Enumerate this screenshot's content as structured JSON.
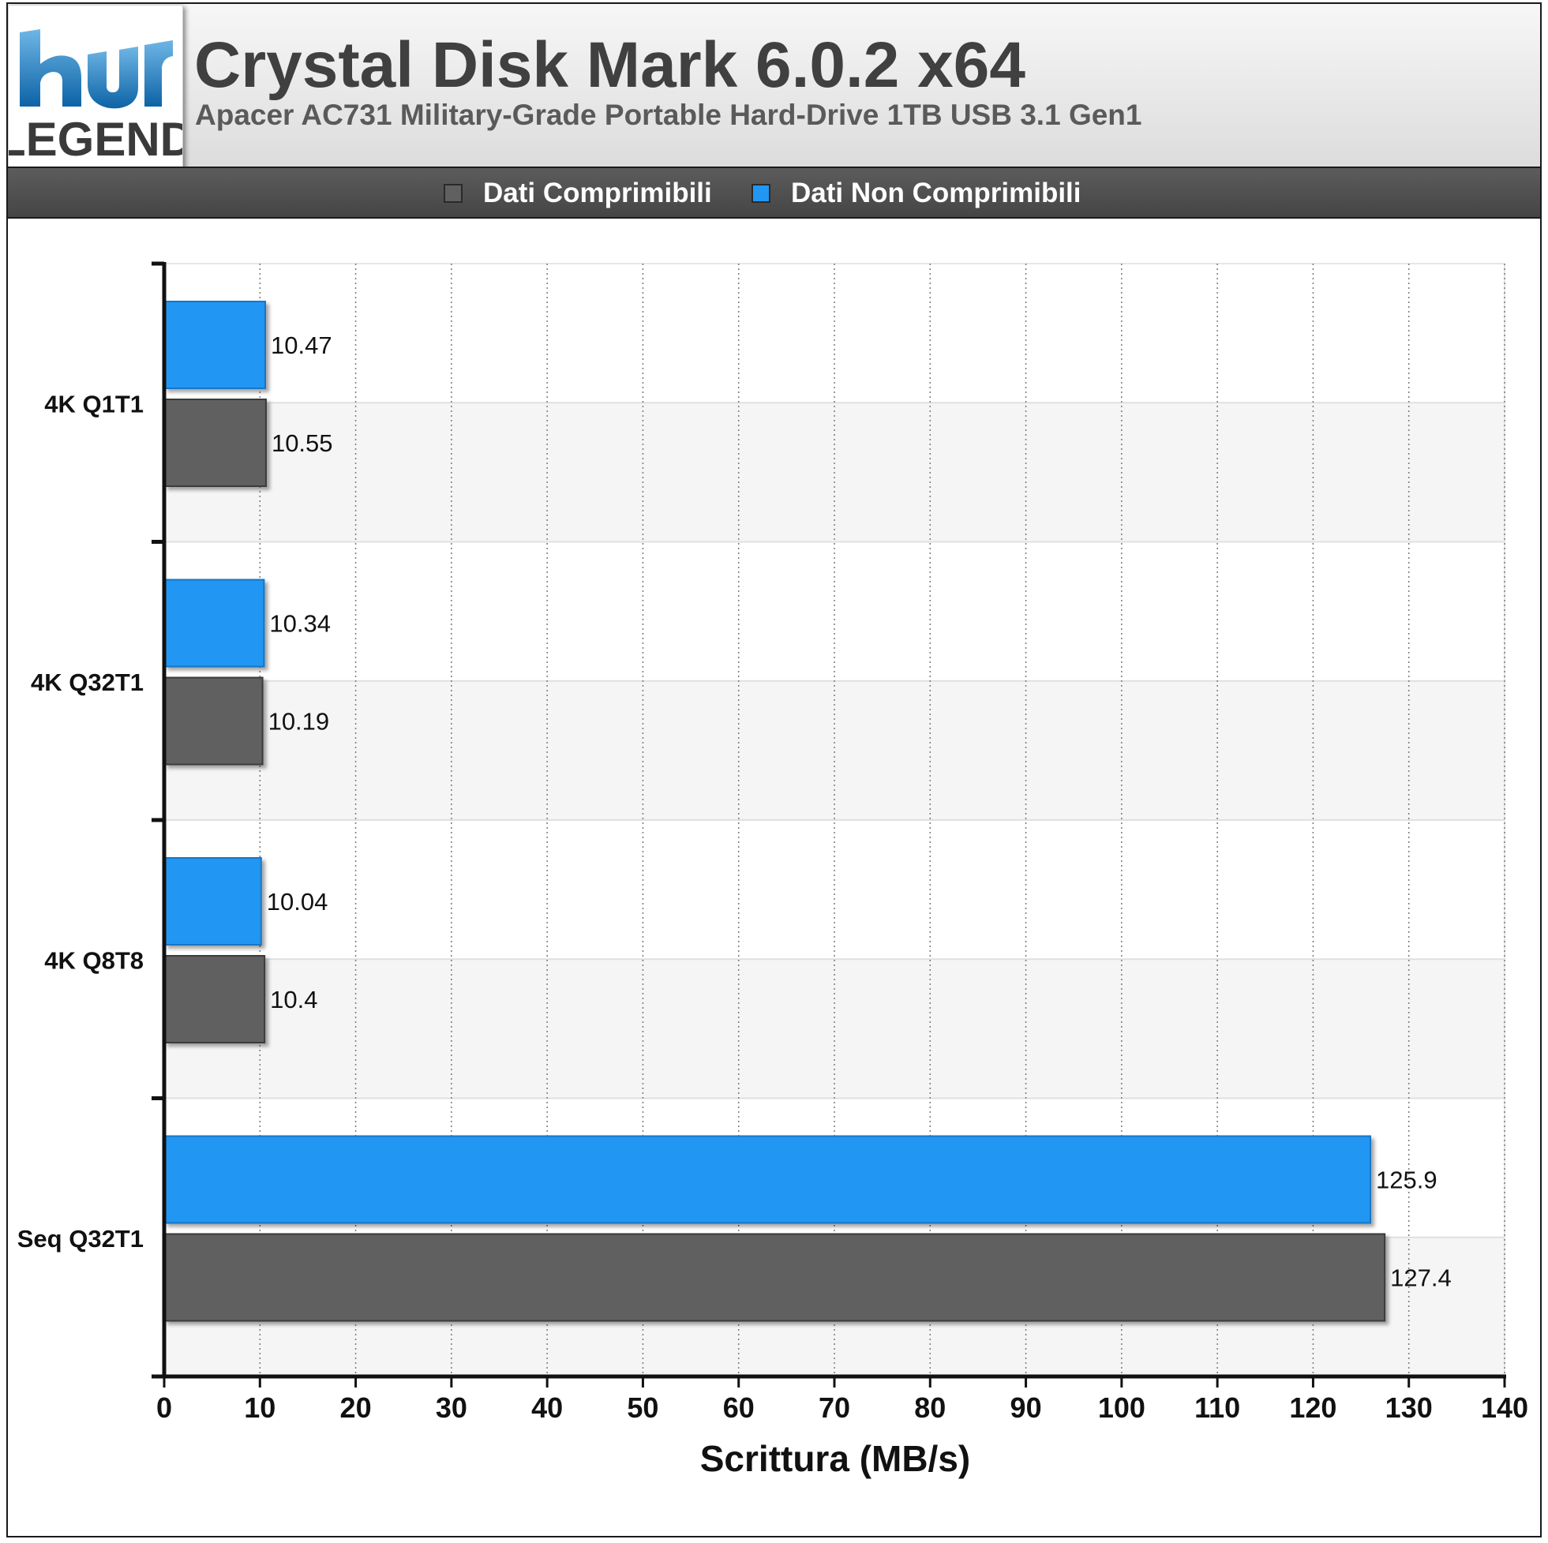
{
  "header": {
    "title": "Crystal Disk Mark 6.0.2 x64",
    "subtitle": "Apacer AC731 Military-Grade Portable Hard-Drive 1TB USB 3.1 Gen1",
    "logo_text": "LEGEND"
  },
  "legend": [
    {
      "label": "Dati Comprimibili",
      "color": "#606060"
    },
    {
      "label": "Dati Non Comprimibili",
      "color": "#2196f3"
    }
  ],
  "chart_data": {
    "type": "bar",
    "orientation": "horizontal",
    "categories": [
      "4K Q1T1",
      "4K Q32T1",
      "4K Q8T8",
      "Seq Q32T1"
    ],
    "series": [
      {
        "name": "Dati Non Comprimibili",
        "color": "#2196f3",
        "values": [
          10.47,
          10.34,
          10.04,
          125.9
        ]
      },
      {
        "name": "Dati Comprimibili",
        "color": "#606060",
        "values": [
          10.55,
          10.19,
          10.4,
          127.4
        ]
      }
    ],
    "value_labels": {
      "Dati Non Comprimibili": [
        "10.47",
        "10.34",
        "10.04",
        "125.9"
      ],
      "Dati Comprimibili": [
        "10.55",
        "10.19",
        "10.4",
        "127.4"
      ]
    },
    "xlabel": "Scrittura (MB/s)",
    "xlim": [
      0,
      140
    ],
    "xticks": [
      "0",
      "10",
      "20",
      "30",
      "40",
      "50",
      "60",
      "70",
      "80",
      "90",
      "100",
      "110",
      "120",
      "130",
      "140"
    ],
    "grid": true,
    "legend_position": "top"
  }
}
